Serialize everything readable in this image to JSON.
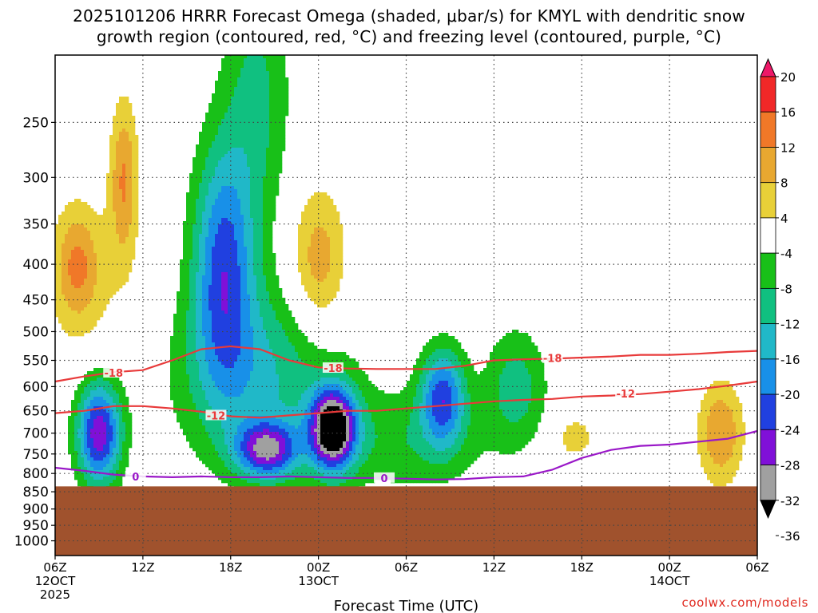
{
  "title_line1": "2025101206 HRRR Forecast Omega (shaded, μbar/s) for KMYL with dendritic snow",
  "title_line2": "growth region (contoured, red, °C) and freezing level (contoured, purple, °C)",
  "credit": "coolwx.com/models",
  "chart_data": {
    "type": "heatmap",
    "title": "2025101206 HRRR Forecast Omega (shaded, μbar/s) for KMYL with dendritic snow growth region (contoured, red, °C) and freezing level (contoured, purple, °C)",
    "xlabel": "Forecast Time (UTC)",
    "ylabel": "",
    "xlim_hours": [
      0,
      48
    ],
    "ylim_hPa": [
      200,
      1050
    ],
    "y_scale": "log-pressure",
    "y_ticks": [
      250,
      300,
      350,
      400,
      450,
      500,
      550,
      600,
      650,
      700,
      750,
      800,
      850,
      900,
      950,
      1000
    ],
    "x_ticks": [
      {
        "hour": 0,
        "lines": [
          "06Z",
          "12OCT",
          "2025"
        ]
      },
      {
        "hour": 6,
        "lines": [
          "12Z"
        ]
      },
      {
        "hour": 12,
        "lines": [
          "18Z"
        ]
      },
      {
        "hour": 18,
        "lines": [
          "00Z",
          "13OCT"
        ]
      },
      {
        "hour": 24,
        "lines": [
          "06Z"
        ]
      },
      {
        "hour": 30,
        "lines": [
          "12Z"
        ]
      },
      {
        "hour": 36,
        "lines": [
          "18Z"
        ]
      },
      {
        "hour": 42,
        "lines": [
          "00Z",
          "14OCT"
        ]
      },
      {
        "hour": 48,
        "lines": [
          "06Z"
        ]
      }
    ],
    "terrain_pressure_hPa": 835,
    "colorbar": {
      "labels": [
        "20",
        "16",
        "12",
        "8",
        "4",
        "-4",
        "-8",
        "-12",
        "-16",
        "-20",
        "-24",
        "-28",
        "-32",
        "-36"
      ],
      "levels": [
        20,
        16,
        12,
        8,
        4,
        -4,
        -8,
        -12,
        -16,
        -20,
        -24,
        -28,
        -32,
        -36
      ],
      "colors": [
        "#ee1868",
        "#f02828",
        "#f07828",
        "#e8a830",
        "#e8d038",
        "#ffffff",
        "#18c018",
        "#10c080",
        "#20b8c8",
        "#1890e8",
        "#2040e0",
        "#8010d8",
        "#a0a0a0",
        "#000000"
      ]
    },
    "omega_features": [
      {
        "center_hour": 1.5,
        "center_hPa": 400,
        "hour_radius": 1.4,
        "pressure_span_hPa": [
          340,
          490
        ],
        "peak": 9
      },
      {
        "center_hour": 4.7,
        "center_hPa": 300,
        "hour_radius": 1.0,
        "pressure_span_hPa": [
          245,
          420
        ],
        "peak": 12
      },
      {
        "center_hour": 18.0,
        "center_hPa": 400,
        "hour_radius": 2.0,
        "pressure_span_hPa": [
          310,
          520
        ],
        "peak": 11
      },
      {
        "center_hour": 2.0,
        "center_hPa": 420,
        "hour_radius": 3.5,
        "pressure_span_hPa": [
          290,
          520
        ],
        "peak": 5
      },
      {
        "center_hour": 35.5,
        "center_hPa": 710,
        "hour_radius": 1.6,
        "pressure_span_hPa": [
          650,
          770
        ],
        "peak": 6
      },
      {
        "center_hour": 45.5,
        "center_hPa": 700,
        "hour_radius": 1.6,
        "pressure_span_hPa": [
          560,
          800
        ],
        "peak": 12
      },
      {
        "center_hour": 11.5,
        "center_hPa": 400,
        "hour_radius": 2.2,
        "pressure_span_hPa": [
          270,
          620
        ],
        "peak": -21
      },
      {
        "center_hour": 14.0,
        "center_hPa": 580,
        "hour_radius": 6.0,
        "pressure_span_hPa": [
          430,
          800
        ],
        "peak": -12
      },
      {
        "center_hour": 3.0,
        "center_hPa": 700,
        "hour_radius": 1.6,
        "pressure_span_hPa": [
          560,
          800
        ],
        "peak": -27
      },
      {
        "center_hour": 14.5,
        "center_hPa": 740,
        "hour_radius": 2.2,
        "pressure_span_hPa": [
          660,
          800
        ],
        "peak": -25
      },
      {
        "center_hour": 19.0,
        "center_hPa": 690,
        "hour_radius": 1.6,
        "pressure_span_hPa": [
          590,
          780
        ],
        "peak": -36
      },
      {
        "center_hour": 26.5,
        "center_hPa": 620,
        "hour_radius": 1.6,
        "pressure_span_hPa": [
          500,
          700
        ],
        "peak": -21
      },
      {
        "center_hour": 13.8,
        "center_hPa": 230,
        "hour_radius": 2.4,
        "pressure_span_hPa": [
          200,
          500
        ],
        "peak": -9
      },
      {
        "center_hour": 31.5,
        "center_hPa": 600,
        "hour_radius": 2.2,
        "pressure_span_hPa": [
          480,
          720
        ],
        "peak": -10
      },
      {
        "center_hour": 24.0,
        "center_hPa": 720,
        "hour_radius": 6.0,
        "pressure_span_hPa": [
          560,
          800
        ],
        "peak": -7
      }
    ],
    "series": [
      {
        "name": "-18 °C isotherm (dendritic growth top)",
        "color": "#e83a3a",
        "x": [
          0,
          2,
          4,
          6,
          8,
          10,
          12,
          14,
          16,
          18,
          20,
          22,
          24,
          26,
          28,
          30,
          32,
          34,
          36,
          38,
          40,
          42,
          44,
          46,
          48
        ],
        "y": [
          590,
          580,
          572,
          568,
          550,
          530,
          525,
          530,
          550,
          563,
          565,
          566,
          566,
          566,
          560,
          550,
          548,
          547,
          545,
          543,
          540,
          540,
          538,
          535,
          533
        ]
      },
      {
        "name": "-12 °C isotherm (dendritic growth base)",
        "color": "#e83a3a",
        "x": [
          0,
          2,
          4,
          6,
          8,
          10,
          12,
          14,
          16,
          18,
          20,
          22,
          24,
          26,
          28,
          30,
          32,
          34,
          36,
          38,
          40,
          42,
          44,
          46,
          48
        ],
        "y": [
          655,
          650,
          640,
          640,
          645,
          652,
          662,
          665,
          660,
          655,
          650,
          650,
          645,
          640,
          635,
          630,
          627,
          625,
          620,
          618,
          615,
          610,
          605,
          598,
          590
        ]
      },
      {
        "name": "0 °C freezing level",
        "color": "#9a18c8",
        "x": [
          0,
          2,
          4,
          6,
          8,
          10,
          12,
          14,
          16,
          18,
          20,
          22,
          24,
          26,
          28,
          30,
          32,
          34,
          36,
          38,
          40,
          42,
          44,
          46,
          48
        ],
        "y": [
          785,
          793,
          803,
          808,
          810,
          808,
          810,
          810,
          808,
          810,
          812,
          812,
          814,
          816,
          815,
          810,
          808,
          790,
          760,
          740,
          730,
          727,
          720,
          713,
          695
        ]
      }
    ],
    "contour_labels": [
      {
        "text": "-18",
        "hour": 4.0,
        "hPa": 573,
        "color": "#e83a3a"
      },
      {
        "text": "-18",
        "hour": 19.0,
        "hPa": 564,
        "color": "#e83a3a"
      },
      {
        "text": "-18",
        "hour": 34.0,
        "hPa": 546,
        "color": "#e83a3a"
      },
      {
        "text": "-12",
        "hour": 11.0,
        "hPa": 660,
        "color": "#e83a3a"
      },
      {
        "text": "-12",
        "hour": 39.0,
        "hPa": 614,
        "color": "#e83a3a"
      },
      {
        "text": "0",
        "hour": 5.5,
        "hPa": 808,
        "color": "#9a18c8"
      },
      {
        "text": "0",
        "hour": 22.5,
        "hPa": 812,
        "color": "#9a18c8"
      }
    ]
  }
}
